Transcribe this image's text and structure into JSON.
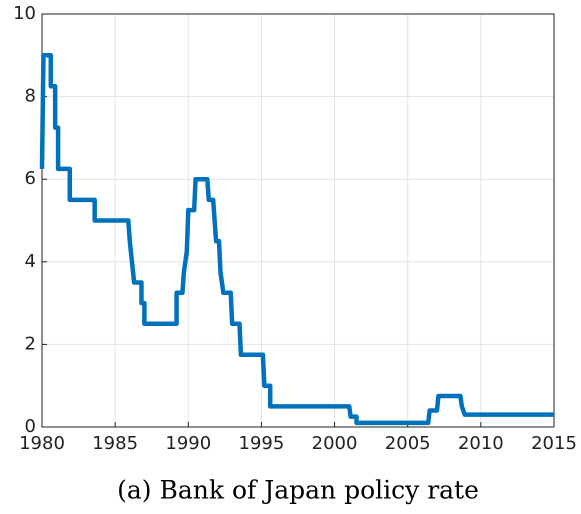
{
  "chart_data": {
    "type": "line",
    "title": "(a) Bank of Japan policy rate",
    "x": [
      1980,
      1980.1,
      1980.6,
      1980.6,
      1980.9,
      1980.9,
      1981.1,
      1981.1,
      1981.9,
      1981.9,
      1983.6,
      1983.6,
      1985.9,
      1986.0,
      1986.3,
      1986.8,
      1986.8,
      1987.0,
      1987.0,
      1989.2,
      1989.2,
      1989.6,
      1989.7,
      1989.9,
      1990.0,
      1990.4,
      1990.5,
      1991.3,
      1991.4,
      1991.7,
      1991.9,
      1992.1,
      1992.2,
      1992.4,
      1992.9,
      1993.0,
      1993.5,
      1993.6,
      1995.1,
      1995.2,
      1995.6,
      1995.6,
      2001.0,
      2001.1,
      2001.5,
      2001.5,
      2006.4,
      2006.5,
      2007.0,
      2007.1,
      2008.6,
      2008.7,
      2008.9,
      2015
    ],
    "series": [
      {
        "color": "#0072bd",
        "values": [
          6.25,
          9,
          9,
          8.25,
          8.25,
          7.25,
          7.25,
          6.25,
          6.25,
          5.5,
          5.5,
          5,
          5,
          4.5,
          3.5,
          3.5,
          3,
          3,
          2.5,
          2.5,
          3.25,
          3.25,
          3.75,
          4.25,
          5.25,
          5.25,
          6,
          6,
          5.5,
          5.5,
          4.5,
          4.5,
          3.75,
          3.25,
          3.25,
          2.5,
          2.5,
          1.75,
          1.75,
          1,
          1,
          0.5,
          0.5,
          0.25,
          0.25,
          0.1,
          0.1,
          0.4,
          0.4,
          0.75,
          0.75,
          0.5,
          0.3,
          0.3
        ]
      }
    ],
    "xlim": [
      1980,
      2015
    ],
    "xticks": [
      1980,
      1985,
      1990,
      1995,
      2000,
      2005,
      2010,
      2015
    ],
    "ylim": [
      0,
      10
    ],
    "yticks": [
      0,
      2,
      4,
      6,
      8,
      10
    ],
    "grid": true
  }
}
